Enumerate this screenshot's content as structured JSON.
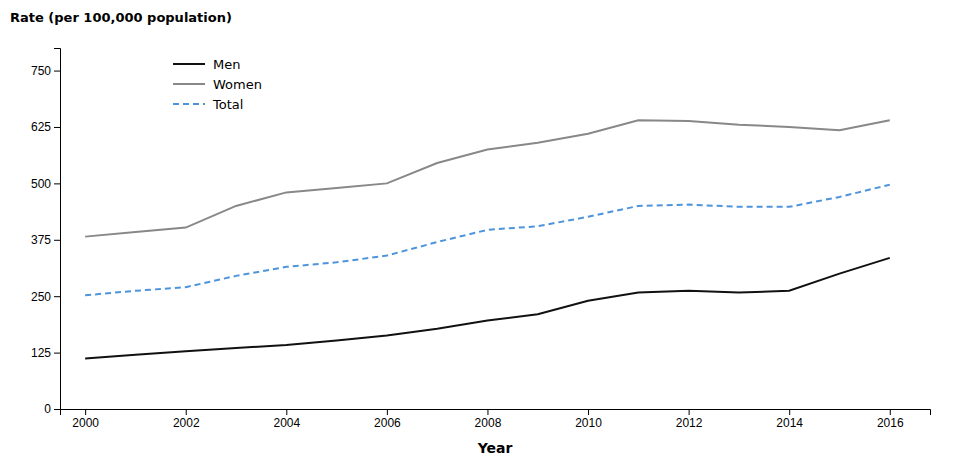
{
  "chart_data": {
    "type": "line",
    "xlabel": "Year",
    "ylabel": "Rate (per 100,000 population)",
    "x": [
      2000,
      2001,
      2002,
      2003,
      2004,
      2005,
      2006,
      2007,
      2008,
      2009,
      2010,
      2011,
      2012,
      2013,
      2014,
      2015,
      2016
    ],
    "series": [
      {
        "name": "Men",
        "color": "#111111",
        "line_style": "solid",
        "values": [
          112,
          120,
          128,
          135,
          142,
          152,
          163,
          178,
          196,
          210,
          240,
          258,
          262,
          258,
          262,
          300,
          335
        ]
      },
      {
        "name": "Women",
        "color": "#888888",
        "line_style": "solid",
        "values": [
          382,
          392,
          402,
          450,
          480,
          490,
          500,
          545,
          575,
          590,
          610,
          640,
          638,
          630,
          625,
          618,
          640
        ]
      },
      {
        "name": "Total",
        "color": "#4d94db",
        "line_style": "dashed",
        "values": [
          252,
          262,
          270,
          295,
          315,
          325,
          340,
          370,
          397,
          405,
          426,
          450,
          453,
          448,
          448,
          470,
          497
        ]
      }
    ],
    "xlim": [
      1999.5,
      2016.8
    ],
    "xticks": [
      2000,
      2002,
      2004,
      2006,
      2008,
      2010,
      2012,
      2014,
      2016
    ],
    "ylim": [
      0,
      800
    ],
    "yticks": [
      0,
      125,
      250,
      375,
      500,
      625,
      750
    ],
    "grid": false,
    "legend": "upper left"
  }
}
